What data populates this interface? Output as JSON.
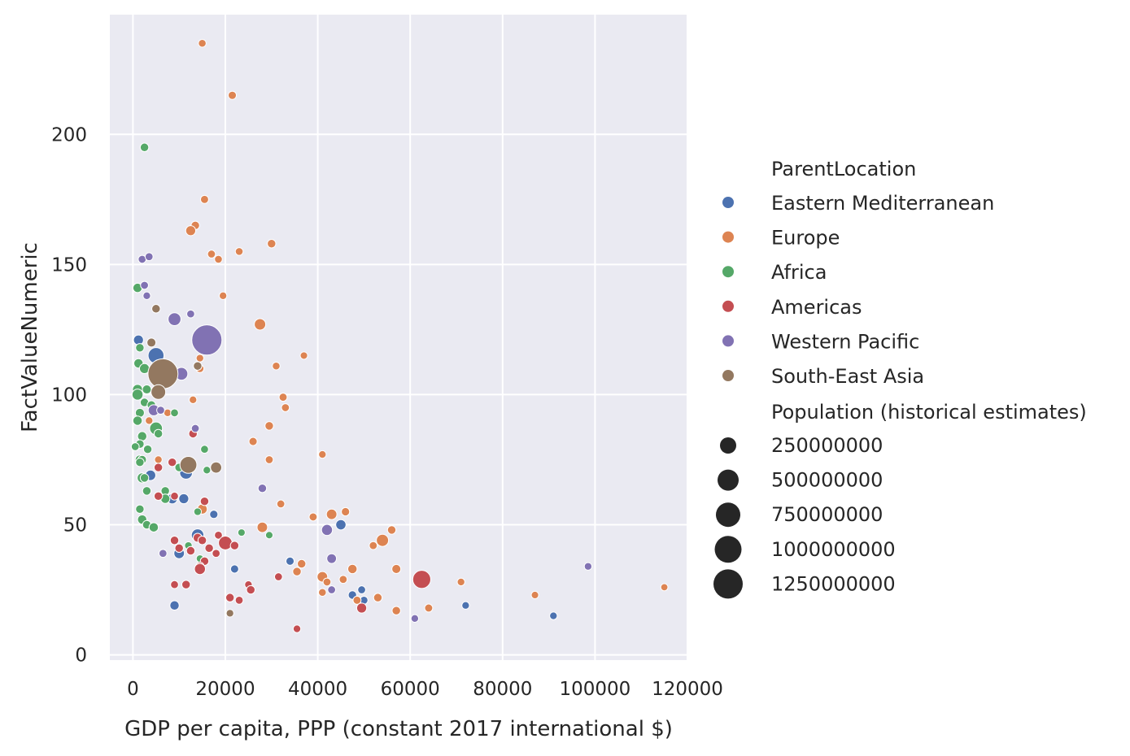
{
  "chart_data": {
    "type": "scatter",
    "title": "",
    "xlabel": "GDP per capita, PPP (constant 2017 international $)",
    "ylabel": "FactValueNumeric",
    "xlim": [
      -5000,
      120000
    ],
    "ylim": [
      -2,
      246
    ],
    "xticks": [
      0,
      20000,
      40000,
      60000,
      80000,
      100000,
      120000
    ],
    "yticks": [
      0,
      50,
      100,
      150,
      200
    ],
    "grid": true,
    "background": "#eaeaf2",
    "legend": {
      "placement": "right",
      "hue_title": "ParentLocation",
      "size_title": "Population (historical estimates)",
      "size_entries": [
        250000000,
        500000000,
        750000000,
        1000000000,
        1250000000
      ]
    },
    "series": [
      {
        "name": "Eastern Mediterranean",
        "color": "#4c72b0",
        "points": [
          [
            1200,
            121,
            30000000
          ],
          [
            5000,
            115,
            220000000
          ],
          [
            3800,
            69,
            40000000
          ],
          [
            11500,
            70,
            100000000
          ],
          [
            8500,
            60,
            35000000
          ],
          [
            11000,
            60,
            30000000
          ],
          [
            17500,
            54,
            8000000
          ],
          [
            14000,
            46,
            90000000
          ],
          [
            10000,
            39,
            40000000
          ],
          [
            9000,
            19,
            20000000
          ],
          [
            22000,
            33,
            7000000
          ],
          [
            34000,
            36,
            7000000
          ],
          [
            45000,
            50,
            35000000
          ],
          [
            47500,
            23,
            9000000
          ],
          [
            49500,
            25,
            5000000
          ],
          [
            50000,
            21,
            5000000
          ],
          [
            72000,
            19,
            3000000
          ],
          [
            91000,
            15,
            3000000
          ]
        ]
      },
      {
        "name": "Europe",
        "color": "#dd8452",
        "points": [
          [
            15000,
            235,
            4000000
          ],
          [
            21500,
            215,
            7000000
          ],
          [
            15500,
            175,
            6000000
          ],
          [
            13500,
            165,
            10000000
          ],
          [
            12500,
            163,
            30000000
          ],
          [
            17000,
            154,
            5000000
          ],
          [
            18500,
            152,
            4000000
          ],
          [
            23000,
            155,
            4000000
          ],
          [
            30000,
            158,
            10000000
          ],
          [
            19500,
            138,
            3000000
          ],
          [
            27500,
            127,
            60000000
          ],
          [
            37000,
            115,
            2000000
          ],
          [
            14500,
            114,
            3000000
          ],
          [
            14500,
            110,
            5000000
          ],
          [
            31000,
            111,
            4000000
          ],
          [
            32500,
            99,
            6000000
          ],
          [
            13000,
            98,
            3000000
          ],
          [
            33000,
            95,
            5000000
          ],
          [
            7500,
            93,
            3000000
          ],
          [
            3500,
            90,
            3000000
          ],
          [
            29500,
            88,
            10000000
          ],
          [
            26000,
            82,
            7000000
          ],
          [
            5500,
            75,
            3000000
          ],
          [
            29500,
            75,
            5000000
          ],
          [
            41000,
            77,
            3000000
          ],
          [
            32000,
            58,
            5000000
          ],
          [
            39000,
            53,
            6000000
          ],
          [
            43000,
            54,
            40000000
          ],
          [
            46000,
            55,
            8000000
          ],
          [
            28000,
            49,
            40000000
          ],
          [
            54000,
            44,
            80000000
          ],
          [
            52000,
            42,
            5000000
          ],
          [
            56000,
            48,
            10000000
          ],
          [
            15000,
            56,
            30000000
          ],
          [
            36500,
            35,
            10000000
          ],
          [
            35500,
            32,
            10000000
          ],
          [
            47500,
            33,
            20000000
          ],
          [
            41000,
            30,
            40000000
          ],
          [
            42000,
            28,
            5000000
          ],
          [
            45500,
            29,
            5000000
          ],
          [
            41000,
            24,
            4000000
          ],
          [
            48500,
            21,
            6000000
          ],
          [
            53000,
            22,
            10000000
          ],
          [
            57000,
            33,
            15000000
          ],
          [
            57000,
            17,
            10000000
          ],
          [
            64000,
            18,
            6000000
          ],
          [
            71000,
            28,
            3000000
          ],
          [
            87000,
            23,
            2000000
          ],
          [
            115000,
            26,
            1000000
          ]
        ]
      },
      {
        "name": "Africa",
        "color": "#55a868",
        "points": [
          [
            2500,
            195,
            10000000
          ],
          [
            1000,
            141,
            20000000
          ],
          [
            1500,
            118,
            10000000
          ],
          [
            1200,
            112,
            20000000
          ],
          [
            2500,
            110,
            30000000
          ],
          [
            1000,
            102,
            30000000
          ],
          [
            3000,
            102,
            15000000
          ],
          [
            1000,
            100,
            50000000
          ],
          [
            2500,
            97,
            10000000
          ],
          [
            4000,
            96,
            10000000
          ],
          [
            1500,
            93,
            15000000
          ],
          [
            9000,
            93,
            5000000
          ],
          [
            1000,
            90,
            20000000
          ],
          [
            5000,
            87,
            100000000
          ],
          [
            5500,
            85,
            10000000
          ],
          [
            2000,
            84,
            20000000
          ],
          [
            1500,
            81,
            10000000
          ],
          [
            500,
            80,
            5000000
          ],
          [
            3200,
            79,
            10000000
          ],
          [
            15500,
            79,
            5000000
          ],
          [
            1500,
            75,
            20000000
          ],
          [
            2000,
            75,
            10000000
          ],
          [
            1500,
            74,
            10000000
          ],
          [
            10000,
            72,
            10000000
          ],
          [
            16000,
            71,
            3000000
          ],
          [
            2000,
            68,
            30000000
          ],
          [
            2500,
            68,
            10000000
          ],
          [
            3000,
            63,
            10000000
          ],
          [
            7000,
            63,
            10000000
          ],
          [
            7000,
            60,
            20000000
          ],
          [
            1500,
            56,
            10000000
          ],
          [
            14000,
            55,
            3000000
          ],
          [
            2000,
            52,
            20000000
          ],
          [
            3000,
            50,
            10000000
          ],
          [
            4500,
            49,
            20000000
          ],
          [
            23500,
            47,
            2000000
          ],
          [
            29500,
            46,
            2000000
          ],
          [
            12000,
            42,
            3000000
          ],
          [
            14500,
            37,
            2000000
          ]
        ]
      },
      {
        "name": "Americas",
        "color": "#c44e52",
        "points": [
          [
            13000,
            85,
            10000000
          ],
          [
            8500,
            74,
            10000000
          ],
          [
            5500,
            72,
            10000000
          ],
          [
            5500,
            61,
            10000000
          ],
          [
            9000,
            61,
            5000000
          ],
          [
            15500,
            59,
            10000000
          ],
          [
            14000,
            45,
            15000000
          ],
          [
            15000,
            44,
            10000000
          ],
          [
            9000,
            44,
            10000000
          ],
          [
            18500,
            46,
            5000000
          ],
          [
            10000,
            41,
            10000000
          ],
          [
            12500,
            40,
            10000000
          ],
          [
            16500,
            41,
            10000000
          ],
          [
            18000,
            39,
            5000000
          ],
          [
            20000,
            43,
            130000000
          ],
          [
            22000,
            42,
            10000000
          ],
          [
            15500,
            36,
            10000000
          ],
          [
            14500,
            34,
            10000000
          ],
          [
            14500,
            33,
            50000000
          ],
          [
            9000,
            27,
            5000000
          ],
          [
            11500,
            27,
            10000000
          ],
          [
            21000,
            22,
            10000000
          ],
          [
            23000,
            21,
            5000000
          ],
          [
            25000,
            27,
            3000000
          ],
          [
            25500,
            25,
            10000000
          ],
          [
            31500,
            30,
            5000000
          ],
          [
            35500,
            10,
            3000000
          ],
          [
            49500,
            18,
            30000000
          ],
          [
            62500,
            29,
            330000000
          ]
        ]
      },
      {
        "name": "Western Pacific",
        "color": "#8172b3",
        "points": [
          [
            2000,
            152,
            5000000
          ],
          [
            3500,
            153,
            5000000
          ],
          [
            2500,
            142,
            5000000
          ],
          [
            3000,
            138,
            3000000
          ],
          [
            12500,
            131,
            5000000
          ],
          [
            9000,
            129,
            100000000
          ],
          [
            16000,
            121,
            1400000000
          ],
          [
            10500,
            108,
            95000000
          ],
          [
            8000,
            107,
            10000000
          ],
          [
            13500,
            87,
            5000000
          ],
          [
            4500,
            94,
            50000000
          ],
          [
            6000,
            94,
            5000000
          ],
          [
            6500,
            39,
            5000000
          ],
          [
            28000,
            64,
            10000000
          ],
          [
            43000,
            37,
            25000000
          ],
          [
            42000,
            48,
            50000000
          ],
          [
            43000,
            25,
            5000000
          ],
          [
            61000,
            14,
            3000000
          ],
          [
            98500,
            34,
            3000000
          ]
        ]
      },
      {
        "name": "South-East Asia",
        "color": "#937860",
        "points": [
          [
            5000,
            133,
            10000000
          ],
          [
            4000,
            120,
            15000000
          ],
          [
            6500,
            108,
            1380000000
          ],
          [
            14000,
            111,
            10000000
          ],
          [
            5500,
            101,
            165000000
          ],
          [
            12000,
            73,
            270000000
          ],
          [
            18000,
            72,
            55000000
          ],
          [
            21000,
            16,
            3000000
          ]
        ]
      }
    ]
  }
}
